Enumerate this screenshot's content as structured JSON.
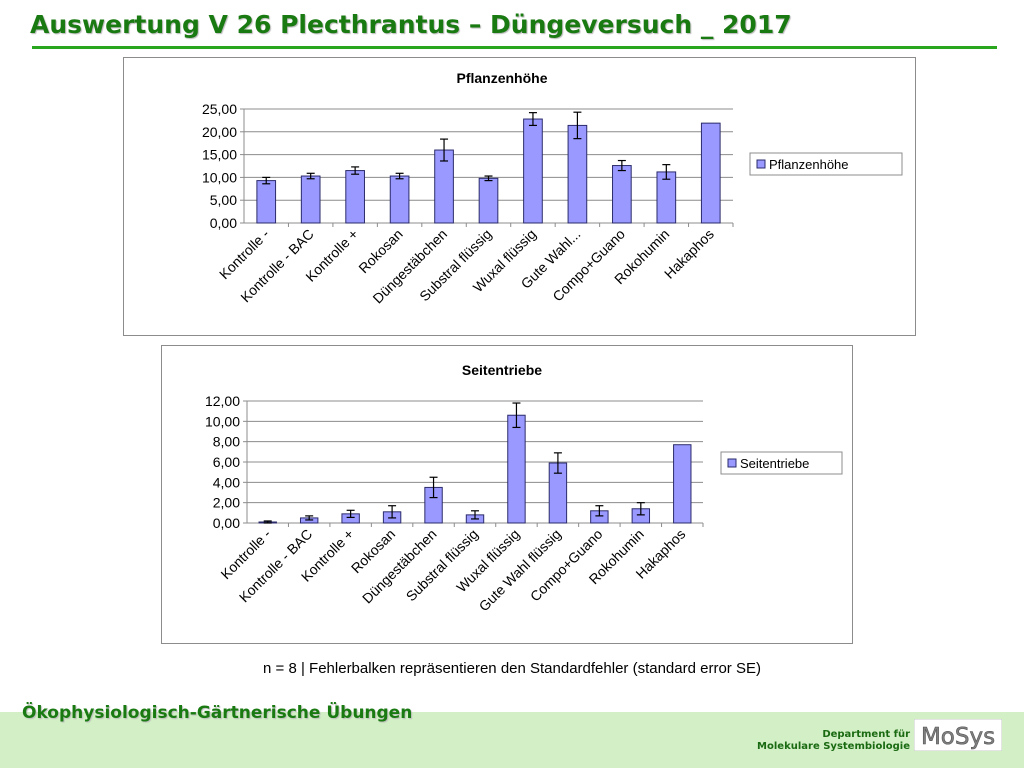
{
  "slide": {
    "title": "Auswertung V 26 Plecthrantus – Düngeversuch _ 2017",
    "footnote": "n = 8 | Fehlerbalken repräsentieren den Standardfehler (standard error SE)",
    "course": "Ökophysiologisch-Gärtnerische Übungen",
    "department_line1": "Department für",
    "department_line2": "Molekulare Systembiologie",
    "logo_text": "MoSys"
  },
  "colors": {
    "title_green": "#1a7a12",
    "rule_green": "#2aa61e",
    "footer_band": "#d2efc5",
    "bar_fill": "#9999ff",
    "bar_stroke": "#2b2b6b",
    "gridline": "#8c8c8c"
  },
  "chart_data": [
    {
      "type": "bar",
      "title": "Pflanzenhöhe",
      "categories": [
        "Kontrolle -",
        "Kontrolle - BAC",
        "Kontrolle +",
        "Rokosan",
        "Düngestäbchen",
        "Substral flüssig",
        "Wuxal flüssig",
        "Gute Wahl...",
        "Compo+Guano",
        "Rokohumin",
        "Hakaphos"
      ],
      "series": [
        {
          "name": "Pflanzenhöhe",
          "values": [
            9.3,
            10.3,
            11.5,
            10.3,
            16.0,
            9.8,
            22.8,
            21.4,
            12.6,
            11.2,
            21.9
          ],
          "errors": [
            0.7,
            0.6,
            0.8,
            0.6,
            2.4,
            0.5,
            1.4,
            2.9,
            1.1,
            1.6,
            0.0
          ]
        }
      ],
      "ylim": [
        0,
        25
      ],
      "yticks": [
        "0,00",
        "5,00",
        "10,00",
        "15,00",
        "20,00",
        "25,00"
      ],
      "grid": true,
      "legend": "right"
    },
    {
      "type": "bar",
      "title": "Seitentriebe",
      "categories": [
        "Kontrolle -",
        "Kontrolle - BAC",
        "Kontrolle +",
        "Rokosan",
        "Düngestäbchen",
        "Substral flüssig",
        "Wuxal flüssig",
        "Gute Wahl flüssig",
        "Compo+Guano",
        "Rokohumin",
        "Hakaphos"
      ],
      "series": [
        {
          "name": "Seitentriebe",
          "values": [
            0.1,
            0.5,
            0.9,
            1.1,
            3.5,
            0.8,
            10.6,
            5.9,
            1.2,
            1.4,
            7.7
          ],
          "errors": [
            0.1,
            0.2,
            0.35,
            0.6,
            1.0,
            0.4,
            1.2,
            1.0,
            0.5,
            0.6,
            0.0
          ]
        }
      ],
      "ylim": [
        0,
        12
      ],
      "yticks": [
        "0,00",
        "2,00",
        "4,00",
        "6,00",
        "8,00",
        "10,00",
        "12,00"
      ],
      "grid": true,
      "legend": "right"
    }
  ]
}
